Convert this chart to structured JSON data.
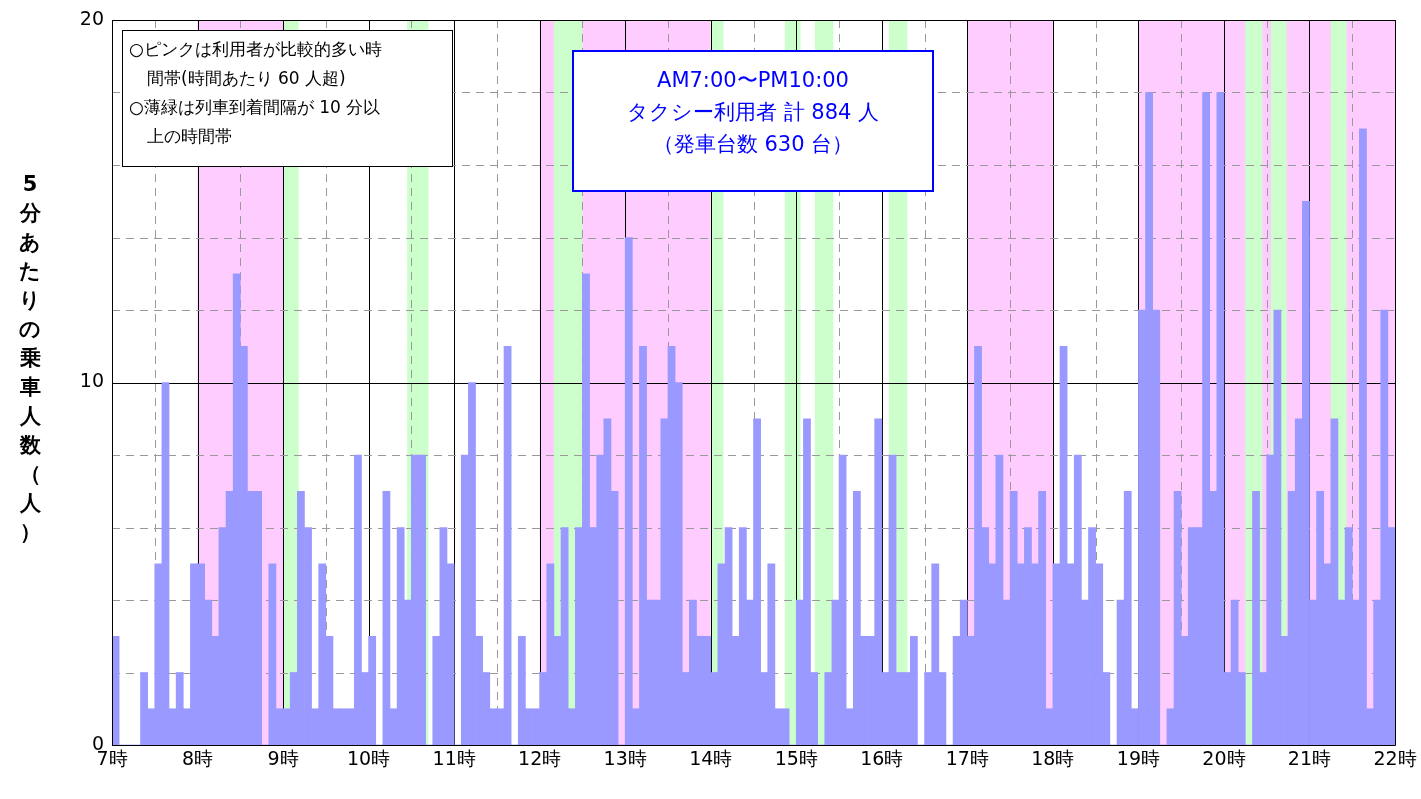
{
  "chart_data": {
    "type": "histogram",
    "ylabel": "5分あたりの乗車人数（人）",
    "bins": [
      7,
      7.0833,
      7.1667,
      7.25,
      7.3333,
      7.4167,
      7.5,
      7.5833,
      7.6667,
      7.75,
      7.8333,
      7.9167,
      8,
      8.0833,
      8.1667,
      8.25,
      8.3333,
      8.4167,
      8.5,
      8.5833,
      8.6667,
      8.75,
      8.8333,
      8.9167,
      9,
      9.0833,
      9.1667,
      9.25,
      9.3333,
      9.4167,
      9.5,
      9.5833,
      9.6667,
      9.75,
      9.8333,
      9.9167,
      10,
      10.0833,
      10.1667,
      10.25,
      10.3333,
      10.4167,
      10.5,
      10.5833,
      10.6667,
      10.75,
      10.8333,
      10.9167,
      11,
      11.0833,
      11.1667,
      11.25,
      11.3333,
      11.4167,
      11.5,
      11.5833,
      11.6667,
      11.75,
      11.8333,
      11.9167,
      12,
      12.0833,
      12.1667,
      12.25,
      12.3333,
      12.4167,
      12.5,
      12.5833,
      12.6667,
      12.75,
      12.8333,
      12.9167,
      13,
      13.0833,
      13.1667,
      13.25,
      13.3333,
      13.4167,
      13.5,
      13.5833,
      13.6667,
      13.75,
      13.8333,
      13.9167,
      14,
      14.0833,
      14.1667,
      14.25,
      14.3333,
      14.4167,
      14.5,
      14.5833,
      14.6667,
      14.75,
      14.8333,
      14.9167,
      15,
      15.0833,
      15.1667,
      15.25,
      15.3333,
      15.4167,
      15.5,
      15.5833,
      15.6667,
      15.75,
      15.8333,
      15.9167,
      16,
      16.0833,
      16.1667,
      16.25,
      16.3333,
      16.4167,
      16.5,
      16.5833,
      16.6667,
      16.75,
      16.8333,
      16.9167,
      17,
      17.0833,
      17.1667,
      17.25,
      17.3333,
      17.4167,
      17.5,
      17.5833,
      17.6667,
      17.75,
      17.8333,
      17.9167,
      18,
      18.0833,
      18.1667,
      18.25,
      18.3333,
      18.4167,
      18.5,
      18.5833,
      18.6667,
      18.75,
      18.8333,
      18.9167,
      19,
      19.0833,
      19.1667,
      19.25,
      19.3333,
      19.4167,
      19.5,
      19.5833,
      19.6667,
      19.75,
      19.8333,
      19.9167,
      20,
      20.0833,
      20.1667,
      20.25,
      20.3333,
      20.4167,
      20.5,
      20.5833,
      20.6667,
      20.75,
      20.8333,
      20.9167,
      21,
      21.0833,
      21.1667,
      21.25,
      21.3333,
      21.4167,
      21.5,
      21.5833,
      21.6667,
      21.75,
      21.8333,
      21.9167,
      22
    ],
    "values": [
      3,
      0,
      0,
      0,
      2,
      1,
      5,
      10,
      1,
      2,
      1,
      5,
      5,
      4,
      3,
      6,
      7,
      13,
      11,
      7,
      7,
      0,
      5,
      1,
      1,
      2,
      7,
      6,
      1,
      5,
      3,
      1,
      1,
      1,
      8,
      2,
      3,
      0,
      7,
      1,
      6,
      4,
      8,
      8,
      0,
      3,
      6,
      5,
      0,
      8,
      10,
      3,
      2,
      1,
      1,
      11,
      0,
      3,
      1,
      1,
      2,
      5,
      3,
      6,
      1,
      6,
      13,
      6,
      8,
      9,
      7,
      0,
      14,
      1,
      11,
      4,
      4,
      9,
      11,
      10,
      2,
      4,
      3,
      3,
      2,
      5,
      6,
      3,
      6,
      4,
      9,
      2,
      5,
      1,
      1,
      0,
      4,
      9,
      2,
      0,
      2,
      4,
      8,
      1,
      7,
      3,
      3,
      9,
      2,
      8,
      2,
      2,
      3,
      0,
      2,
      5,
      2,
      0,
      3,
      4,
      3,
      11,
      6,
      5,
      8,
      4,
      7,
      5,
      6,
      5,
      7,
      1,
      5,
      11,
      5,
      8,
      4,
      6,
      5,
      2,
      0,
      4,
      7,
      1,
      12,
      18,
      12,
      0,
      1,
      7,
      3,
      6,
      6,
      18,
      7,
      18,
      2,
      4,
      2,
      0,
      7,
      2,
      8,
      12,
      3,
      7,
      9,
      15,
      4,
      7,
      5,
      9,
      4,
      6,
      4,
      17,
      1,
      4,
      12,
      6
    ],
    "color": "#9999ff",
    "xlim": [
      7,
      22
    ],
    "xticks": [
      {
        "value": 7,
        "label": "7時"
      },
      {
        "value": 7.5,
        "label": null
      },
      {
        "value": 8,
        "label": "8時"
      },
      {
        "value": 8.5,
        "label": null
      },
      {
        "value": 9,
        "label": "9時"
      },
      {
        "value": 9.5,
        "label": null
      },
      {
        "value": 10,
        "label": "10時"
      },
      {
        "value": 10.5,
        "label": null
      },
      {
        "value": 11,
        "label": "11時"
      },
      {
        "value": 11.5,
        "label": null
      },
      {
        "value": 12,
        "label": "12時"
      },
      {
        "value": 12.5,
        "label": null
      },
      {
        "value": 13,
        "label": "13時"
      },
      {
        "value": 13.5,
        "label": null
      },
      {
        "value": 14,
        "label": "14時"
      },
      {
        "value": 14.5,
        "label": null
      },
      {
        "value": 15,
        "label": "15時"
      },
      {
        "value": 15.5,
        "label": null
      },
      {
        "value": 16,
        "label": "16時"
      },
      {
        "value": 16.5,
        "label": null
      },
      {
        "value": 17,
        "label": "17時"
      },
      {
        "value": 17.5,
        "label": null
      },
      {
        "value": 18,
        "label": "18時"
      },
      {
        "value": 18.5,
        "label": null
      },
      {
        "value": 19,
        "label": "19時"
      },
      {
        "value": 19.5,
        "label": null
      },
      {
        "value": 20,
        "label": "20時"
      },
      {
        "value": 20.5,
        "label": null
      },
      {
        "value": 21,
        "label": "21時"
      },
      {
        "value": 21.5,
        "label": null
      },
      {
        "value": 22,
        "label": "22時"
      }
    ],
    "ylim": [
      0,
      20
    ],
    "yticks": [
      0,
      {
        "value": 2,
        "label": null
      },
      {
        "value": 4,
        "label": null
      },
      {
        "value": 6,
        "label": null
      },
      {
        "value": 8,
        "label": null
      },
      10,
      {
        "value": 12,
        "label": null
      },
      {
        "value": 14,
        "label": null
      },
      {
        "value": 16,
        "label": null
      },
      {
        "value": 18,
        "label": null
      },
      20
    ],
    "grid": true,
    "bands": [
      {
        "axis": "x",
        "from": 8,
        "to": 9,
        "color": "#ffccff"
      },
      {
        "axis": "x",
        "from": 12,
        "to": 14,
        "color": "#ffccff"
      },
      {
        "axis": "x",
        "from": 17,
        "to": 18,
        "color": "#ffccff"
      },
      {
        "axis": "x",
        "from": 19,
        "to": 22,
        "color": "#ffccff"
      },
      {
        "axis": "x",
        "from": 9,
        "to": 9.183,
        "color": "#ccffcc"
      },
      {
        "axis": "x",
        "from": 10.45,
        "to": 10.7,
        "color": "#ccffcc"
      },
      {
        "axis": "x",
        "from": 12.167,
        "to": 12.5,
        "color": "#ccffcc"
      },
      {
        "axis": "x",
        "from": 14,
        "to": 14.15,
        "color": "#ccffcc"
      },
      {
        "axis": "x",
        "from": 14.867,
        "to": 15.05,
        "color": "#ccffcc"
      },
      {
        "axis": "x",
        "from": 15.217,
        "to": 15.433,
        "color": "#ccffcc"
      },
      {
        "axis": "x",
        "from": 16.083,
        "to": 16.3,
        "color": "#ccffcc"
      },
      {
        "axis": "x",
        "from": 20.25,
        "to": 20.45,
        "color": "#ccffcc"
      },
      {
        "axis": "x",
        "from": 20.55,
        "to": 20.733,
        "color": "#ccffcc"
      },
      {
        "axis": "x",
        "from": 21.25,
        "to": 21.433,
        "color": "#ccffcc"
      }
    ],
    "annotations": [
      "○ピンクは利用者が比較的多い時間帯(時間あたり 60 人超)",
      "○薄緑は列車到着間隔が 10 分以上の時間帯",
      "AM7:00〜PM10:00",
      "タクシー利用者 計 884 人",
      "（発車台数 630 台）"
    ],
    "legend": false
  }
}
